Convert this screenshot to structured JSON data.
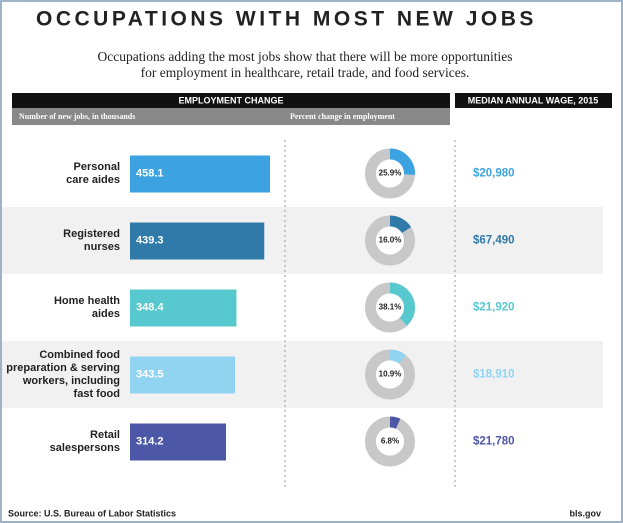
{
  "header": {
    "title": "OCCUPATIONS WITH MOST NEW JOBS",
    "subtitle": [
      "Occupations adding the most jobs show that there will be more opportunities",
      "for employment in healthcare, retail trade, and food services."
    ]
  },
  "section_header": "EMPLOYMENT CHANGE",
  "chart_data": [
    {
      "type": "bar",
      "title": "Number of new jobs, in thousands",
      "categories": [
        [
          "Personal",
          "care aides"
        ],
        [
          "Registered",
          "nurses"
        ],
        [
          "Home health",
          "aides"
        ],
        [
          "Combined food",
          "preparation & serving",
          "workers, including",
          "fast food"
        ],
        [
          "Retail",
          "salespersons"
        ]
      ],
      "values": [
        458.1,
        439.3,
        348.4,
        343.5,
        314.2
      ],
      "colors": [
        "#3da3e0",
        "#2f7aa8",
        "#58c8cf",
        "#90d4f2",
        "#4c57a7"
      ]
    },
    {
      "type": "donut",
      "title": "Percent change in employment",
      "values": [
        25.9,
        16.0,
        38.1,
        10.9,
        6.8
      ],
      "value_labels": [
        "25.9%",
        "16.0%",
        "38.1%",
        "10.9%",
        "6.8%"
      ],
      "colors": [
        "#3da3e0",
        "#2f7aa8",
        "#58c8cf",
        "#90d4f2",
        "#4c57a7"
      ]
    },
    {
      "type": "wage",
      "title": "MEDIAN ANNUAL WAGE, 2015",
      "values": [
        20980,
        67490,
        21920,
        18910,
        21780
      ],
      "value_labels": [
        "$20,980",
        "$67,490",
        "$21,920",
        "$18,910",
        "$21,780"
      ],
      "colors": [
        "#3da3e0",
        "#2f7aa8",
        "#58c8cf",
        "#90d4f2",
        "#4c57a7"
      ]
    }
  ],
  "footer": {
    "source": "Source: U.S. Bureau of Labor Statistics",
    "site": "bls.gov"
  }
}
